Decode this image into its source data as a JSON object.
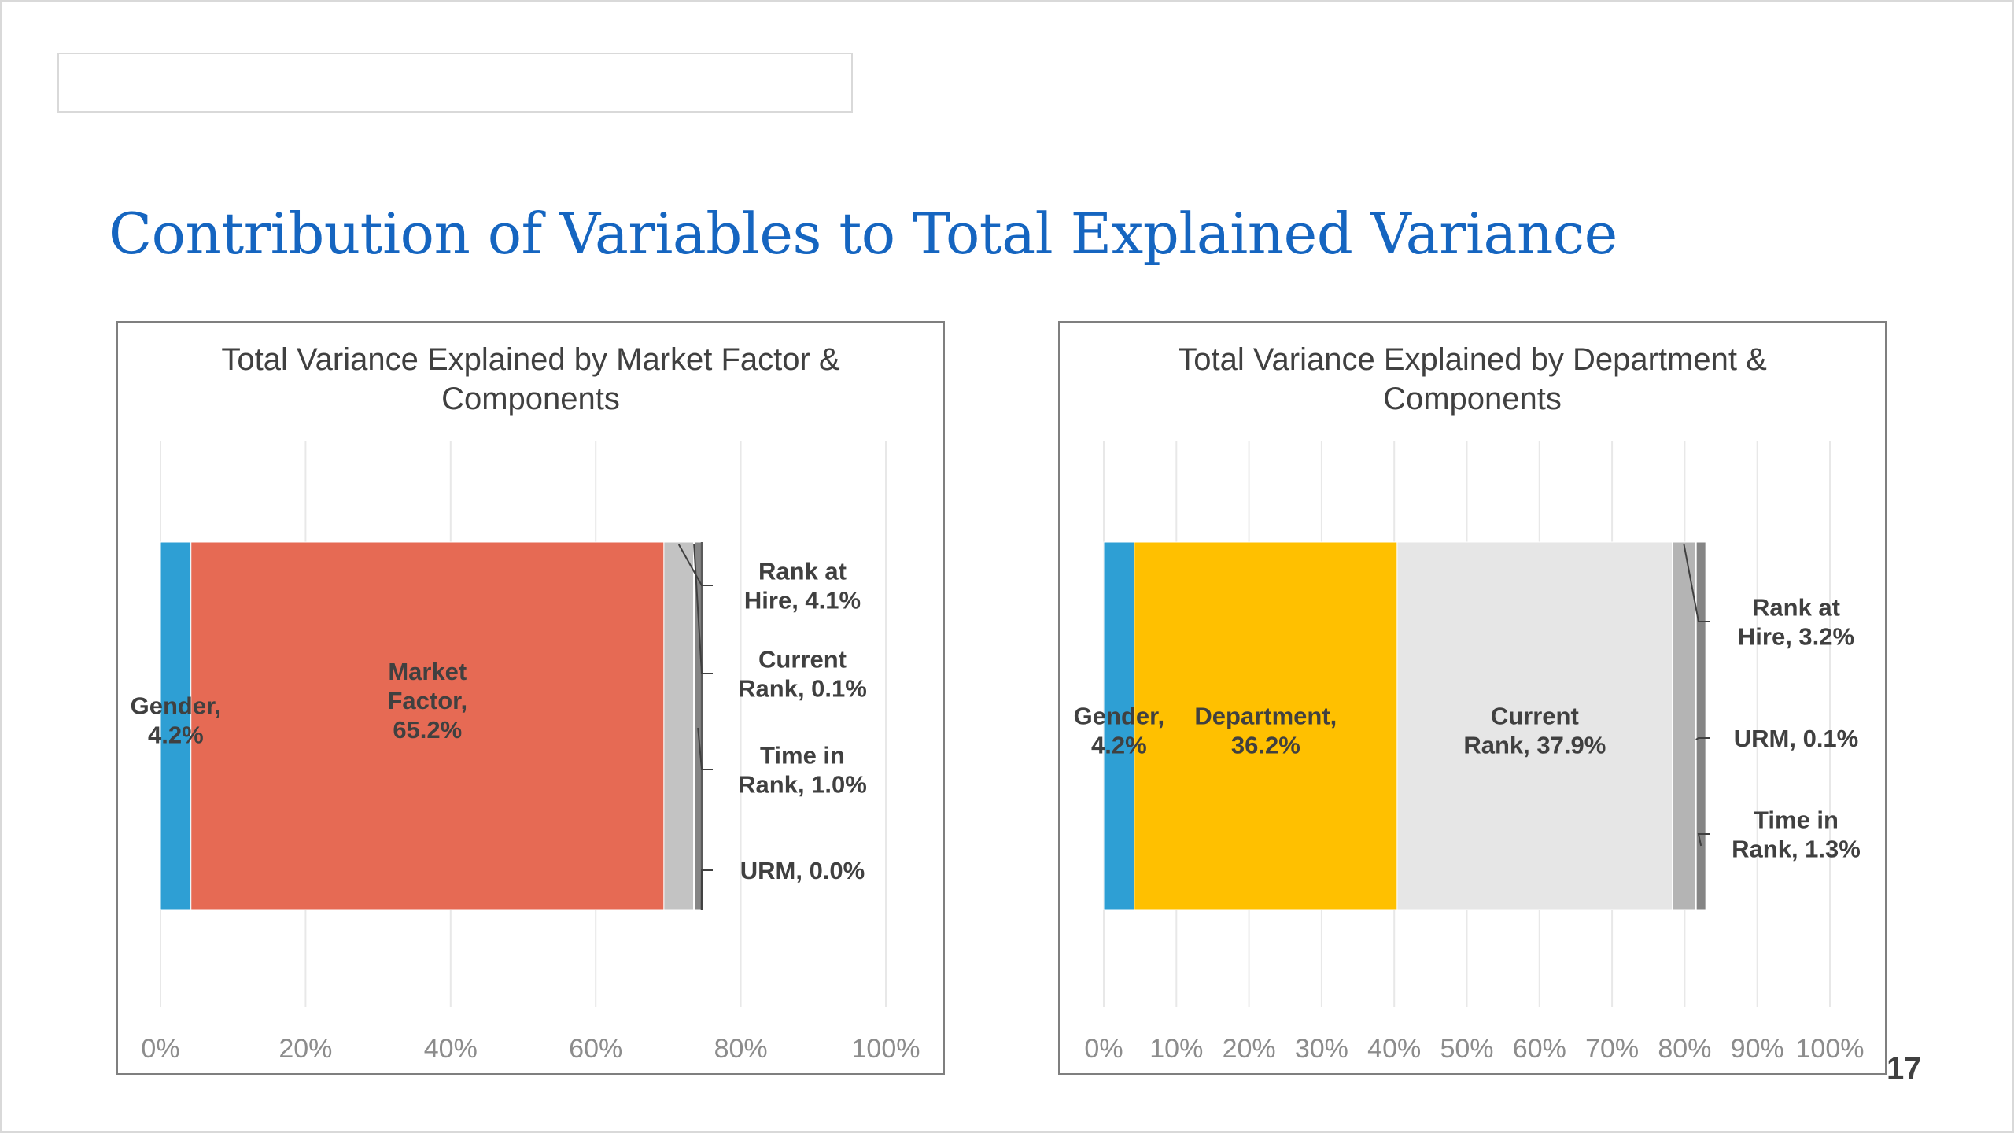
{
  "slide": {
    "title": "Contribution of Variables to Total Explained Variance",
    "page_number": "17"
  },
  "chart_data": [
    {
      "type": "bar",
      "orientation": "horizontal",
      "stacked": true,
      "title": "Total Variance Explained by Market Factor & Components",
      "xlim": [
        0,
        100
      ],
      "xticks": [
        0,
        20,
        40,
        60,
        80,
        100
      ],
      "tick_labels": [
        "0%",
        "20%",
        "40%",
        "60%",
        "80%",
        "100%"
      ],
      "grid": true,
      "legend": "none",
      "series": [
        {
          "name": "Gender",
          "value": 4.2,
          "color": "#2e9fd4",
          "label_lines": [
            "Gender,",
            "4.2%"
          ],
          "label_placement": "inside"
        },
        {
          "name": "Market Factor",
          "value": 65.2,
          "color": "#e66a54",
          "label_lines": [
            "Market",
            "Factor,",
            "65.2%"
          ],
          "label_placement": "inside"
        },
        {
          "name": "Rank at Hire",
          "value": 4.1,
          "color": "#c3c3c3",
          "label_lines": [
            "Rank at",
            "Hire, 4.1%"
          ],
          "label_placement": "callout"
        },
        {
          "name": "Current Rank",
          "value": 0.1,
          "color": "#e6e6e6",
          "label_lines": [
            "Current",
            "Rank, 0.1%"
          ],
          "label_placement": "callout"
        },
        {
          "name": "Time in Rank",
          "value": 1.0,
          "color": "#858585",
          "label_lines": [
            "Time in",
            "Rank, 1.0%"
          ],
          "label_placement": "callout"
        },
        {
          "name": "URM",
          "value": 0.0,
          "color": "#5a5a5a",
          "label_lines": [
            "URM, 0.0%"
          ],
          "label_placement": "callout"
        }
      ]
    },
    {
      "type": "bar",
      "orientation": "horizontal",
      "stacked": true,
      "title": "Total Variance Explained by Department & Components",
      "xlim": [
        0,
        100
      ],
      "xticks": [
        0,
        10,
        20,
        30,
        40,
        50,
        60,
        70,
        80,
        90,
        100
      ],
      "tick_labels": [
        "0%",
        "10%",
        "20%",
        "30%",
        "40%",
        "50%",
        "60%",
        "70%",
        "80%",
        "90%",
        "100%"
      ],
      "grid": true,
      "legend": "none",
      "series": [
        {
          "name": "Gender",
          "value": 4.2,
          "color": "#2e9fd4",
          "label_lines": [
            "Gender,",
            "4.2%"
          ],
          "label_placement": "inside"
        },
        {
          "name": "Department",
          "value": 36.2,
          "color": "#ffc000",
          "label_lines": [
            "Department,",
            "36.2%"
          ],
          "label_placement": "inside"
        },
        {
          "name": "Current Rank",
          "value": 37.9,
          "color": "#e6e6e6",
          "label_lines": [
            "Current",
            "Rank, 37.9%"
          ],
          "label_placement": "inside"
        },
        {
          "name": "Rank at Hire",
          "value": 3.2,
          "color": "#b4b4b4",
          "label_lines": [
            "Rank at",
            "Hire, 3.2%"
          ],
          "label_placement": "callout"
        },
        {
          "name": "URM",
          "value": 0.1,
          "color": "#e66a54",
          "label_lines": [
            "URM, 0.1%"
          ],
          "label_placement": "callout"
        },
        {
          "name": "Time in Rank",
          "value": 1.3,
          "color": "#858585",
          "label_lines": [
            "Time in",
            "Rank, 1.3%"
          ],
          "label_placement": "callout"
        }
      ]
    }
  ]
}
